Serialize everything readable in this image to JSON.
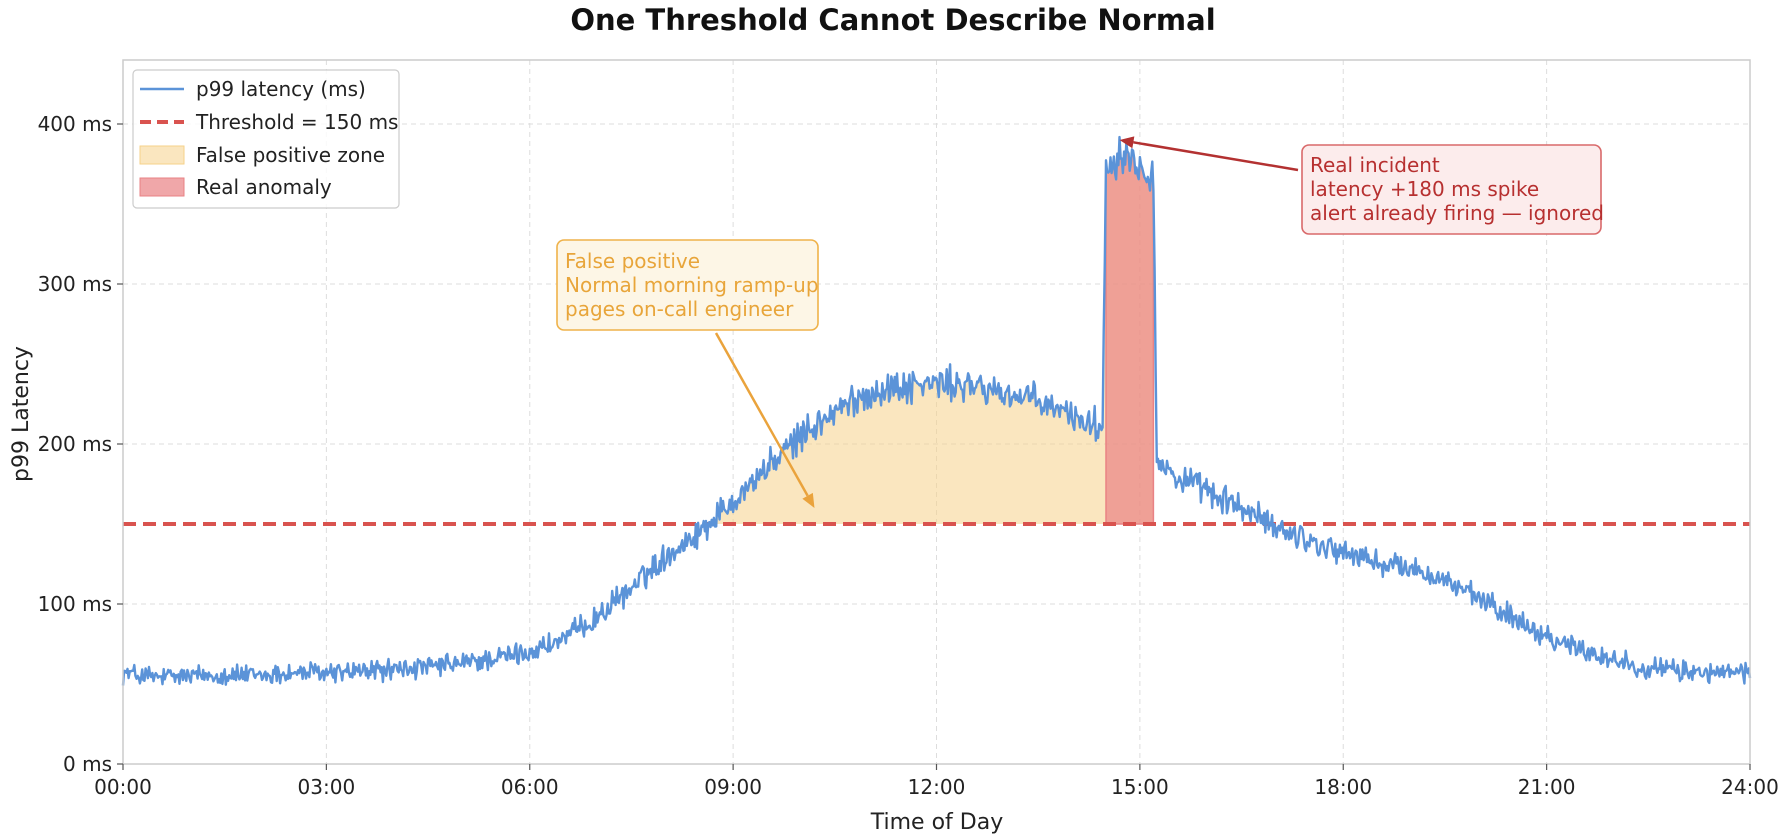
{
  "chart_data": {
    "type": "line",
    "title": "One Threshold Cannot Describe Normal",
    "xlabel": "Time of Day",
    "ylabel": "p99 Latency",
    "xlim": [
      0,
      24
    ],
    "ylim": [
      0,
      440
    ],
    "x_ticks": [
      0,
      3,
      6,
      9,
      12,
      15,
      18,
      21,
      24
    ],
    "x_tick_labels": [
      "00:00",
      "03:00",
      "06:00",
      "09:00",
      "12:00",
      "15:00",
      "18:00",
      "21:00",
      "24:00"
    ],
    "y_ticks": [
      0,
      100,
      200,
      300,
      400
    ],
    "y_tick_labels": [
      "0 ms",
      "100 ms",
      "200 ms",
      "300 ms",
      "400 ms"
    ],
    "grid": true,
    "legend_position": "top-left",
    "series": [
      {
        "name": "p99 latency (ms)",
        "kind": "line",
        "color": "#5b93d8",
        "x": [
          0,
          0.5,
          1,
          1.5,
          2,
          2.5,
          3,
          3.5,
          4,
          4.5,
          5,
          5.5,
          6,
          6.5,
          7,
          7.5,
          8,
          8.5,
          9,
          9.5,
          10,
          10.5,
          11,
          11.5,
          12,
          12.5,
          13,
          13.5,
          14,
          14.45,
          14.5,
          14.75,
          15,
          15.2,
          15.25,
          15.5,
          16,
          16.5,
          17,
          17.5,
          18,
          18.5,
          19,
          19.5,
          20,
          20.5,
          21,
          21.5,
          22,
          22.5,
          23,
          23.5,
          24
        ],
        "values": [
          57,
          54,
          55,
          56,
          55,
          57,
          57,
          58,
          59,
          60,
          63,
          66,
          70,
          78,
          92,
          110,
          130,
          145,
          165,
          185,
          205,
          220,
          232,
          236,
          238,
          236,
          232,
          226,
          218,
          210,
          375,
          383,
          375,
          368,
          190,
          180,
          170,
          160,
          148,
          140,
          132,
          126,
          122,
          115,
          103,
          92,
          80,
          72,
          65,
          60,
          58,
          57,
          57
        ]
      },
      {
        "name": "Threshold = 150 ms",
        "kind": "threshold",
        "color": "#d9534f",
        "value": 150
      },
      {
        "name": "False positive zone",
        "kind": "fill",
        "color": "#f6d18a",
        "x_range": [
          8.6,
          15.2
        ]
      },
      {
        "name": "Real anomaly",
        "kind": "fill",
        "color": "#e98284",
        "x_range": [
          14.5,
          15.2
        ]
      }
    ],
    "annotations": [
      {
        "name": "false-positive",
        "lines": [
          "False positive",
          "Normal morning ramp-up",
          "pages on-call engineer"
        ],
        "text_color": "#e8a53a",
        "box_fill": "#fdf6e6",
        "box_stroke": "#efb24a",
        "arrow_color": "#eaa33c",
        "target": [
          10.2,
          160
        ]
      },
      {
        "name": "real-incident",
        "lines": [
          "Real incident",
          "latency +180 ms spike",
          "alert already firing — ignored"
        ],
        "text_color": "#b73030",
        "box_fill": "#fcecec",
        "box_stroke": "#d9696a",
        "arrow_color": "#b33131",
        "target": [
          14.7,
          390
        ]
      }
    ]
  }
}
